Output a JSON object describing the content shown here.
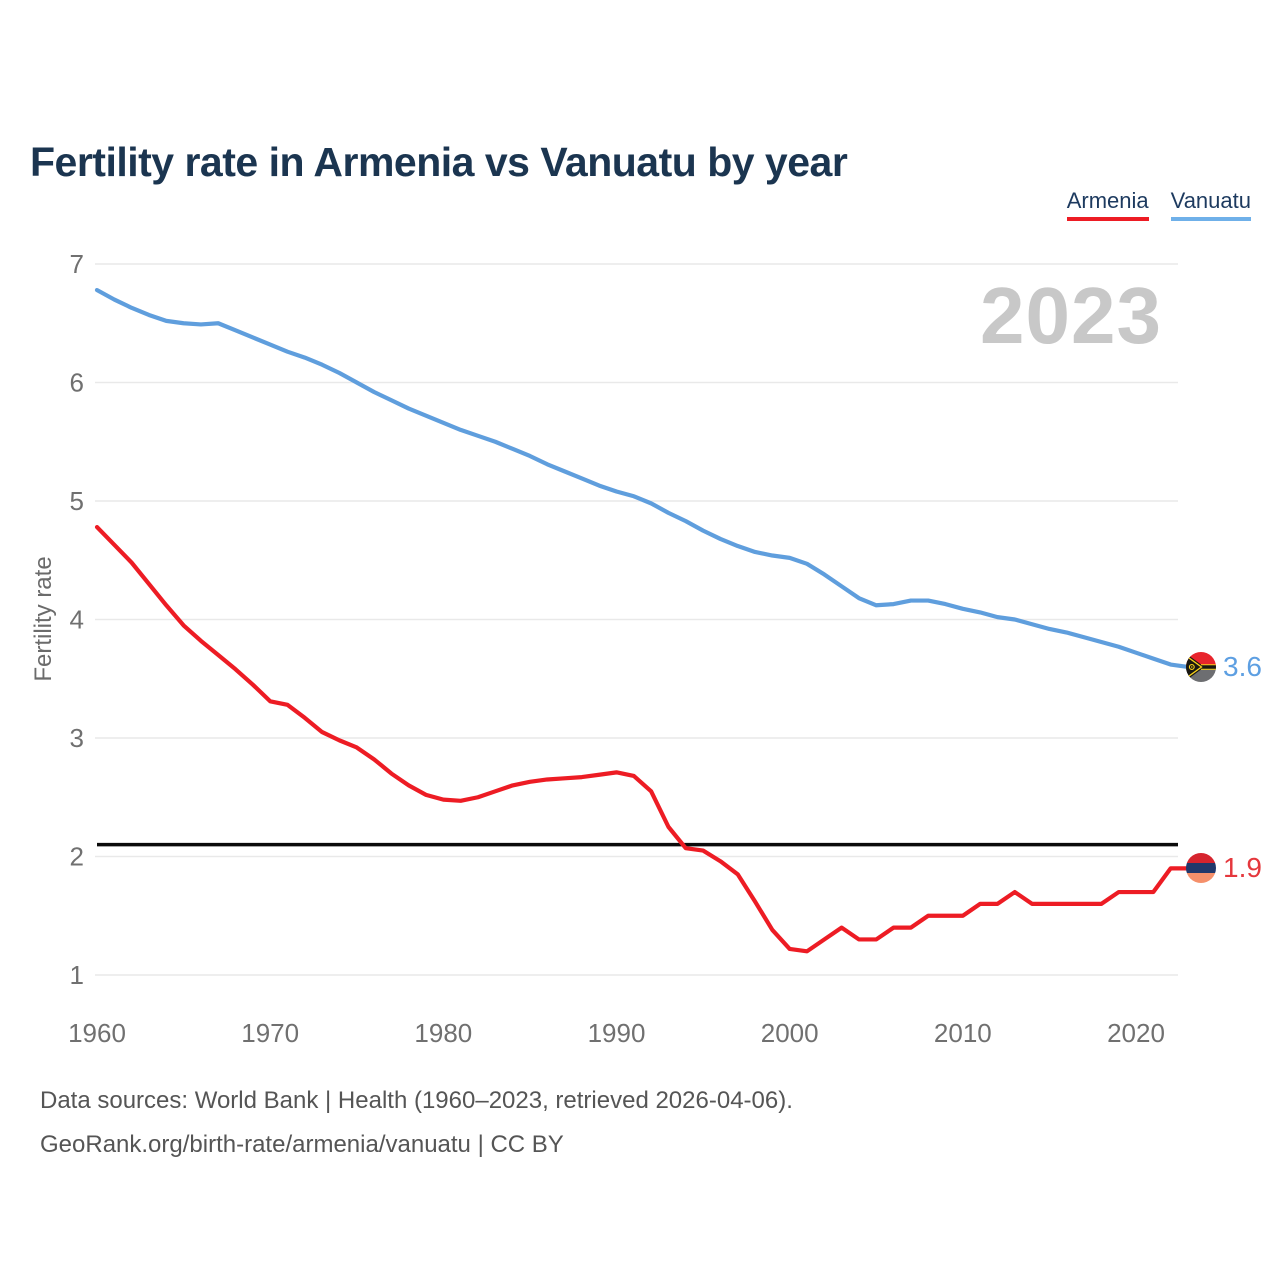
{
  "header": {
    "title": "Fertility rate in Armenia vs Vanuatu by year"
  },
  "legend": {
    "items": [
      {
        "label": "Armenia",
        "color": "#ed1c24"
      },
      {
        "label": "Vanuatu",
        "color": "#6fb0e9"
      }
    ]
  },
  "watermark": {
    "text": "2023"
  },
  "axis": {
    "ylabel": "Fertility rate"
  },
  "footer": {
    "line1": "Data sources: World Bank | Health (1960–2023, retrieved 2026-04-06).",
    "line2": "GeoRank.org/birth-rate/armenia/vanuatu | CC BY"
  },
  "chart_data": {
    "type": "line",
    "title": "Fertility rate in Armenia vs Vanuatu by year",
    "xlabel": "",
    "ylabel": "Fertility rate",
    "ylim": [
      1,
      7
    ],
    "yticks": [
      1,
      2,
      3,
      4,
      5,
      6,
      7
    ],
    "xticks": [
      1960,
      1970,
      1980,
      1990,
      2000,
      2010,
      2020
    ],
    "x_range": [
      1960,
      2023
    ],
    "grid": "horizontal",
    "legend_position": "top-right",
    "reference_line": {
      "value": 2.1,
      "color": "#0b0b0b"
    },
    "years": [
      1960,
      1961,
      1962,
      1963,
      1964,
      1965,
      1966,
      1967,
      1968,
      1969,
      1970,
      1971,
      1972,
      1973,
      1974,
      1975,
      1976,
      1977,
      1978,
      1979,
      1980,
      1981,
      1982,
      1983,
      1984,
      1985,
      1986,
      1987,
      1988,
      1989,
      1990,
      1991,
      1992,
      1993,
      1994,
      1995,
      1996,
      1997,
      1998,
      1999,
      2000,
      2001,
      2002,
      2003,
      2004,
      2005,
      2006,
      2007,
      2008,
      2009,
      2010,
      2011,
      2012,
      2013,
      2014,
      2015,
      2016,
      2017,
      2018,
      2019,
      2020,
      2021,
      2022,
      2023
    ],
    "series": [
      {
        "name": "Armenia",
        "color": "#ed1c24",
        "end_label": "1.9",
        "values": [
          4.78,
          4.63,
          4.48,
          4.3,
          4.12,
          3.95,
          3.82,
          3.7,
          3.58,
          3.45,
          3.31,
          3.28,
          3.17,
          3.05,
          2.98,
          2.92,
          2.82,
          2.7,
          2.6,
          2.52,
          2.48,
          2.47,
          2.5,
          2.55,
          2.6,
          2.63,
          2.65,
          2.66,
          2.67,
          2.69,
          2.71,
          2.68,
          2.55,
          2.25,
          2.07,
          2.05,
          1.96,
          1.85,
          1.62,
          1.38,
          1.22,
          1.2,
          1.3,
          1.4,
          1.3,
          1.3,
          1.4,
          1.4,
          1.5,
          1.5,
          1.5,
          1.6,
          1.6,
          1.7,
          1.6,
          1.6,
          1.6,
          1.6,
          1.6,
          1.7,
          1.7,
          1.7,
          1.9,
          1.9
        ]
      },
      {
        "name": "Vanuatu",
        "color": "#5f9edd",
        "end_label": "3.6",
        "values": [
          6.78,
          6.7,
          6.63,
          6.57,
          6.52,
          6.5,
          6.49,
          6.5,
          6.44,
          6.38,
          6.32,
          6.26,
          6.21,
          6.15,
          6.08,
          6.0,
          5.92,
          5.85,
          5.78,
          5.72,
          5.66,
          5.6,
          5.55,
          5.5,
          5.44,
          5.38,
          5.31,
          5.25,
          5.19,
          5.13,
          5.08,
          5.04,
          4.98,
          4.9,
          4.83,
          4.75,
          4.68,
          4.62,
          4.57,
          4.54,
          4.52,
          4.47,
          4.38,
          4.28,
          4.18,
          4.12,
          4.13,
          4.16,
          4.16,
          4.13,
          4.09,
          4.06,
          4.02,
          4.0,
          3.96,
          3.92,
          3.89,
          3.85,
          3.81,
          3.77,
          3.72,
          3.67,
          3.62,
          3.6
        ]
      }
    ]
  }
}
